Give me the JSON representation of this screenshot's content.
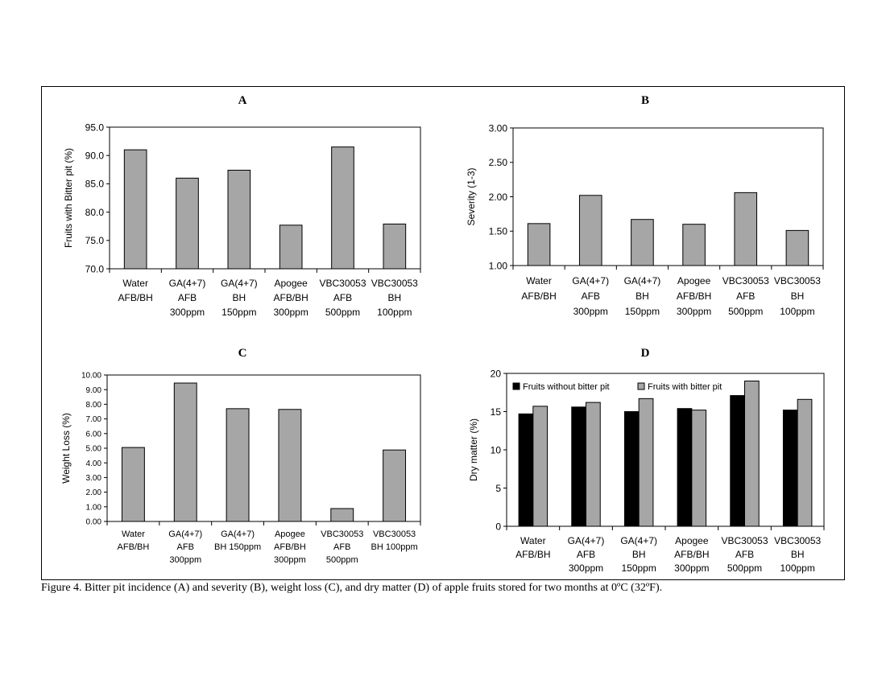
{
  "caption": "Figure 4. Bitter pit incidence (A) and severity (B), weight loss (C), and dry matter (D) of apple fruits stored for two months at 0ºC (32ºF).",
  "colors": {
    "gray_bar": "#a6a6a6",
    "black_bar": "#000000"
  },
  "chart_data": [
    {
      "type": "bar",
      "title": "A",
      "ylabel": "Fruits with Bitter pit (%)",
      "ylim": [
        70.0,
        95.0
      ],
      "yticks": [
        "70.0",
        "75.0",
        "80.0",
        "85.0",
        "90.0",
        "95.0"
      ],
      "categories": [
        [
          "Water",
          "AFB/BH"
        ],
        [
          "GA(4+7)",
          "AFB",
          "300ppm"
        ],
        [
          "GA(4+7)",
          "BH",
          "150ppm"
        ],
        [
          "Apogee",
          "AFB/BH",
          "300ppm"
        ],
        [
          "VBC30053",
          "AFB",
          "500ppm"
        ],
        [
          "VBC30053",
          "BH",
          "100ppm"
        ]
      ],
      "series": [
        {
          "values": [
            91.0,
            86.0,
            87.4,
            77.7,
            91.5,
            77.9
          ]
        }
      ]
    },
    {
      "type": "bar",
      "title": "B",
      "ylabel": "Severity (1-3)",
      "ylim": [
        1.0,
        3.0
      ],
      "yticks": [
        "1.00",
        "1.50",
        "2.00",
        "2.50",
        "3.00"
      ],
      "categories": [
        [
          "Water",
          "AFB/BH"
        ],
        [
          "GA(4+7)",
          "AFB",
          "300ppm"
        ],
        [
          "GA(4+7)",
          "BH",
          "150ppm"
        ],
        [
          "Apogee",
          "AFB/BH",
          "300ppm"
        ],
        [
          "VBC30053",
          "AFB",
          "500ppm"
        ],
        [
          "VBC30053",
          "BH",
          "100ppm"
        ]
      ],
      "series": [
        {
          "values": [
            1.61,
            2.02,
            1.67,
            1.6,
            2.06,
            1.51
          ]
        }
      ]
    },
    {
      "type": "bar",
      "title": "C",
      "ylabel": "Weight Loss (%)",
      "ylim": [
        0.0,
        10.0
      ],
      "yticks": [
        "0.00",
        "1.00",
        "2.00",
        "3.00",
        "4.00",
        "5.00",
        "6.00",
        "7.00",
        "8.00",
        "9.00",
        "10.00"
      ],
      "categories": [
        [
          "Water",
          "AFB/BH"
        ],
        [
          "GA(4+7)",
          "AFB",
          "300ppm"
        ],
        [
          "GA(4+7)",
          "BH 150ppm"
        ],
        [
          "Apogee",
          "AFB/BH",
          "300ppm"
        ],
        [
          "VBC30053",
          "AFB",
          "500ppm"
        ],
        [
          "VBC30053",
          "BH 100ppm"
        ]
      ],
      "series": [
        {
          "values": [
            5.05,
            9.45,
            7.7,
            7.65,
            0.88,
            4.88
          ]
        }
      ]
    },
    {
      "type": "bar",
      "title": "D",
      "ylabel": "Dry matter (%)",
      "ylim": [
        0,
        20
      ],
      "yticks": [
        "0",
        "5",
        "10",
        "15",
        "20"
      ],
      "legend_position": "top",
      "categories": [
        [
          "Water",
          "AFB/BH"
        ],
        [
          "GA(4+7)",
          "AFB",
          "300ppm"
        ],
        [
          "GA(4+7)",
          "BH",
          "150ppm"
        ],
        [
          "Apogee",
          "AFB/BH",
          "300ppm"
        ],
        [
          "VBC30053",
          "AFB",
          "500ppm"
        ],
        [
          "VBC30053",
          "BH",
          "100ppm"
        ]
      ],
      "series": [
        {
          "name": "Fruits without bitter pit",
          "color": "#000000",
          "values": [
            14.7,
            15.6,
            15.0,
            15.4,
            17.1,
            15.2
          ]
        },
        {
          "name": "Fruits with bitter pit",
          "color": "#a6a6a6",
          "values": [
            15.7,
            16.2,
            16.7,
            15.2,
            19.0,
            16.6
          ]
        }
      ]
    }
  ]
}
